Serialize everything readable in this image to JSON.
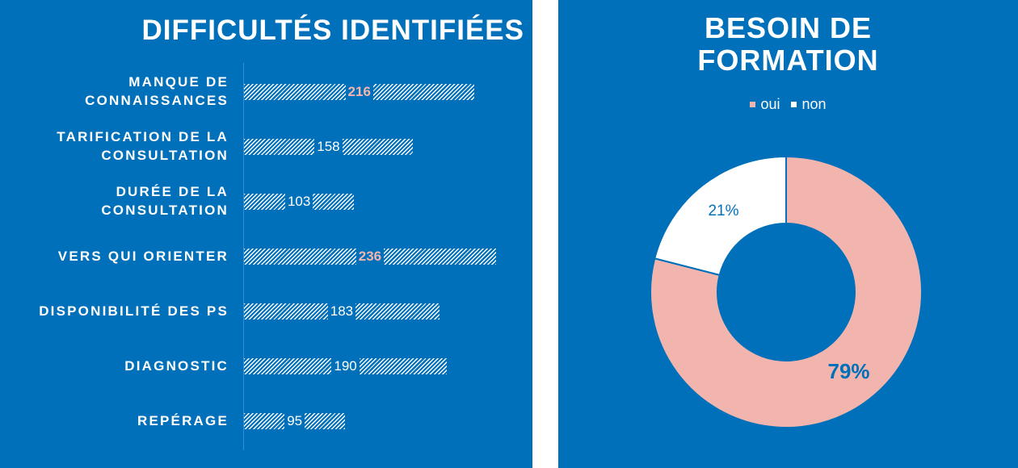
{
  "chart_data": [
    {
      "type": "bar",
      "orientation": "horizontal",
      "title": "DIFFICULTÉS IDENTIFIÉES",
      "categories": [
        [
          "MANQUE DE",
          "CONNAISSANCES"
        ],
        [
          "TARIFICATION DE LA",
          "CONSULTATION"
        ],
        [
          "DURÉE DE LA",
          "CONSULTATION"
        ],
        [
          "VERS QUI ORIENTER"
        ],
        [
          "DISPONIBILITÉ DES PS"
        ],
        [
          "DIAGNOSTIC"
        ],
        [
          "REPÉRAGE"
        ]
      ],
      "values": [
        216,
        158,
        103,
        236,
        183,
        190,
        95
      ],
      "highlighted": [
        216,
        236
      ],
      "xlim": [
        0,
        300
      ],
      "grid": false
    },
    {
      "type": "pie",
      "subtype": "donut",
      "title": "BESOIN DE FORMATION",
      "labels": [
        "oui",
        "non"
      ],
      "values": [
        79,
        21
      ],
      "value_labels": [
        "79%",
        "21%"
      ],
      "legend": "top-center",
      "colors": [
        "#f2b5ae",
        "#ffffff"
      ]
    }
  ],
  "colors": {
    "background": "#0070ba",
    "accent": "#f2b5ae",
    "text": "#ffffff"
  }
}
